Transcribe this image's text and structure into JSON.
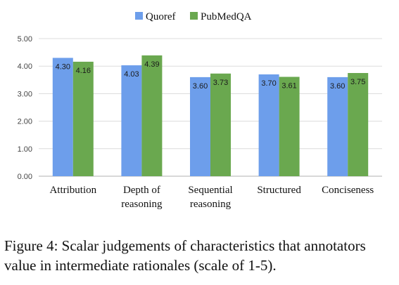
{
  "chart_data": {
    "type": "bar",
    "categories": [
      [
        "Attribution"
      ],
      [
        "Depth of",
        "reasoning"
      ],
      [
        "Sequential",
        "reasoning"
      ],
      [
        "Structured"
      ],
      [
        "Conciseness"
      ]
    ],
    "series": [
      {
        "name": "Quoref",
        "values": [
          4.3,
          4.03,
          3.6,
          3.7,
          3.6
        ],
        "labels": [
          "4.30",
          "4.03",
          "3.60",
          "3.70",
          "3.60"
        ],
        "color": "#6d9eeb"
      },
      {
        "name": "PubMedQA",
        "values": [
          4.16,
          4.39,
          3.73,
          3.61,
          3.75
        ],
        "labels": [
          "4.16",
          "4.39",
          "3.73",
          "3.61",
          "3.75"
        ],
        "color": "#6aa84f"
      }
    ],
    "yticks": [
      "0.00",
      "1.00",
      "2.00",
      "3.00",
      "4.00",
      "5.00"
    ],
    "ylim": [
      0,
      5
    ],
    "grid": true,
    "legend_position": "top-center"
  },
  "caption": "Figure 4: Scalar judgements of characteristics that annotators value in intermediate rationales (scale of 1-5)."
}
